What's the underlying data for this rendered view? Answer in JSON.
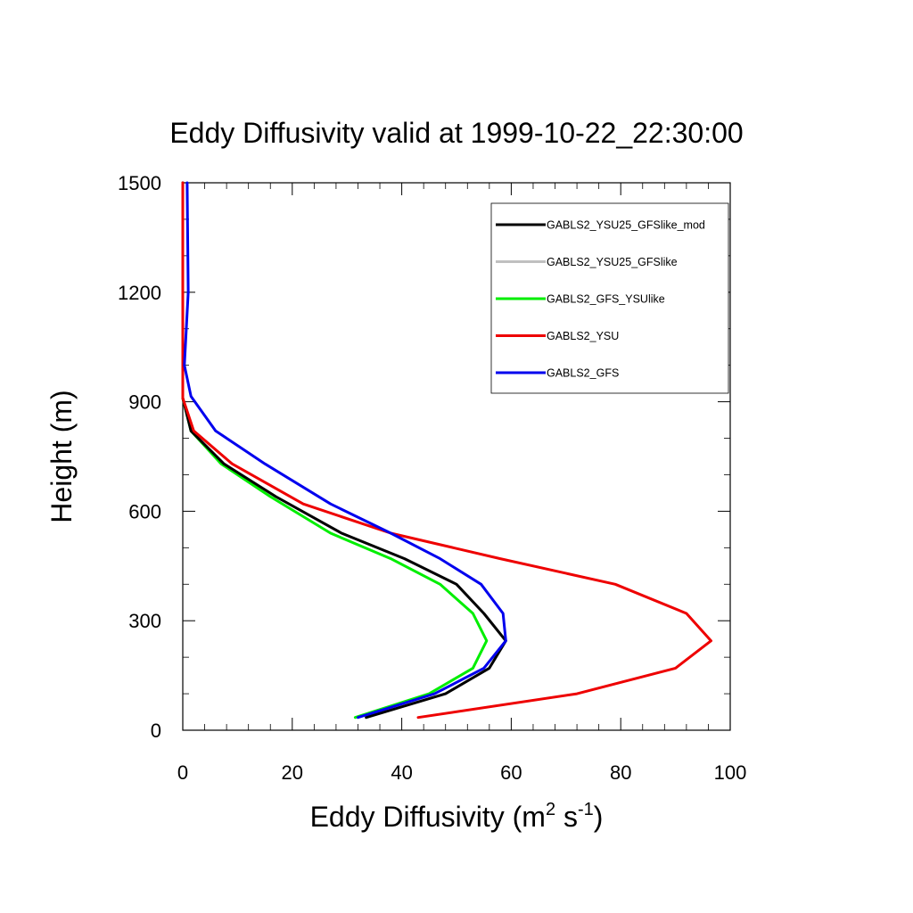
{
  "chart_data": {
    "type": "line",
    "title": "Eddy Diffusivity valid at 1999-10-22_22:30:00",
    "xlabel": {
      "main": "Eddy Diffusivity (m",
      "sup1": "2",
      "mid": " s",
      "sup2": "-1",
      "end": ")"
    },
    "ylabel": "Height (m)",
    "xlim": [
      0,
      100
    ],
    "ylim": [
      0,
      1500
    ],
    "x_ticks": [
      0,
      20,
      40,
      60,
      80,
      100
    ],
    "x_tick_labels": [
      "0",
      "20",
      "40",
      "60",
      "80",
      "100"
    ],
    "y_ticks": [
      0,
      300,
      600,
      900,
      1200,
      1500
    ],
    "y_tick_labels": [
      "0",
      "300",
      "600",
      "900",
      "1200",
      "1500"
    ],
    "grid": false,
    "legend_position": "top-right",
    "series": [
      {
        "name": "GABLS2_YSU25_GFSlike_mod",
        "color": "#000000",
        "x": [
          33.5,
          48,
          56,
          59,
          55,
          50,
          40.5,
          29,
          17,
          7.5,
          1.5,
          0,
          0,
          0,
          0
        ],
        "y": [
          35,
          100,
          170,
          245,
          320,
          400,
          470,
          540,
          640,
          730,
          820,
          910,
          1000,
          1200,
          1500
        ]
      },
      {
        "name": "GABLS2_YSU25_GFSlike",
        "color": "#c0c0c0",
        "x": [
          33.5,
          48,
          56,
          59,
          55,
          50,
          40.5,
          29,
          17,
          7.5,
          1.5,
          0,
          0,
          0,
          0
        ],
        "y": [
          35,
          100,
          170,
          245,
          320,
          400,
          470,
          540,
          640,
          730,
          820,
          910,
          1000,
          1200,
          1500
        ]
      },
      {
        "name": "GABLS2_GFS_YSUlike",
        "color": "#00ee00",
        "x": [
          31.5,
          45,
          53,
          55.5,
          53,
          47,
          38,
          27,
          16,
          7,
          1.5,
          0,
          0,
          0,
          0
        ],
        "y": [
          35,
          100,
          170,
          245,
          320,
          400,
          470,
          540,
          640,
          730,
          820,
          910,
          1000,
          1200,
          1500
        ]
      },
      {
        "name": "GABLS2_YSU",
        "color": "#ee0000",
        "x": [
          43,
          72,
          90,
          96.5,
          92,
          79,
          58,
          38,
          22,
          9,
          2,
          0,
          0,
          0,
          0
        ],
        "y": [
          35,
          100,
          170,
          245,
          320,
          400,
          470,
          540,
          620,
          730,
          820,
          910,
          1000,
          1200,
          1500
        ]
      },
      {
        "name": "GABLS2_GFS",
        "color": "#0000ee",
        "x": [
          32,
          46,
          55,
          59,
          58.5,
          54.5,
          47,
          38,
          27,
          15,
          6,
          1.5,
          0.3,
          1,
          0.8
        ],
        "y": [
          35,
          100,
          170,
          245,
          320,
          400,
          470,
          540,
          620,
          730,
          820,
          915,
          1000,
          1200,
          1500
        ]
      }
    ]
  }
}
